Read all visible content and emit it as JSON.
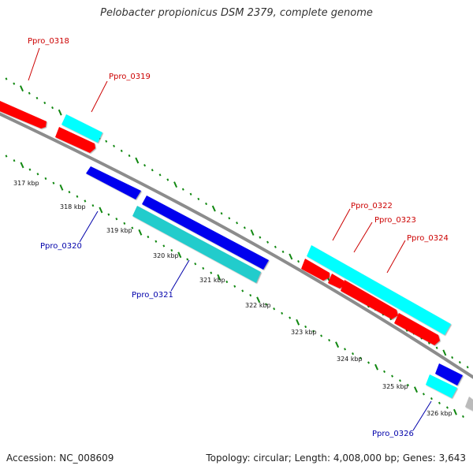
{
  "title": "Pelobacter propionicus DSM 2379, complete genome",
  "footer": {
    "accession": "Accession: NC_008609",
    "summary": "Topology: circular; Length: 4,008,000 bp; Genes: 3,643"
  },
  "colors": {
    "backbone": "#8c8c8c",
    "forward_gene": "#ff0000",
    "forward_rna": "#00ffff",
    "reverse_gene": "#0000ee",
    "reverse_rna": "#22cccc",
    "other_gene": "#bbbbbb",
    "tick": "#118811",
    "forward_label": "#cc0000",
    "reverse_label": "#0000aa"
  },
  "ruler": {
    "ticks": [
      "317 kbp",
      "318 kbp",
      "319 kbp",
      "320 kbp",
      "321 kbp",
      "322 kbp",
      "323 kbp",
      "324 kbp",
      "325 kbp",
      "326 kbp"
    ]
  },
  "gene_labels": [
    {
      "id": "Ppro_0318",
      "label": "Ppro_0318",
      "strand": "forward"
    },
    {
      "id": "Ppro_0319",
      "label": "Ppro_0319",
      "strand": "forward"
    },
    {
      "id": "Ppro_0320",
      "label": "Ppro_0320",
      "strand": "reverse"
    },
    {
      "id": "Ppro_0321",
      "label": "Ppro_0321",
      "strand": "reverse"
    },
    {
      "id": "Ppro_0322",
      "label": "Ppro_0322",
      "strand": "forward"
    },
    {
      "id": "Ppro_0323",
      "label": "Ppro_0323",
      "strand": "forward"
    },
    {
      "id": "Ppro_0324",
      "label": "Ppro_0324",
      "strand": "forward"
    },
    {
      "id": "Ppro_0326",
      "label": "Ppro_0326",
      "strand": "reverse"
    }
  ]
}
